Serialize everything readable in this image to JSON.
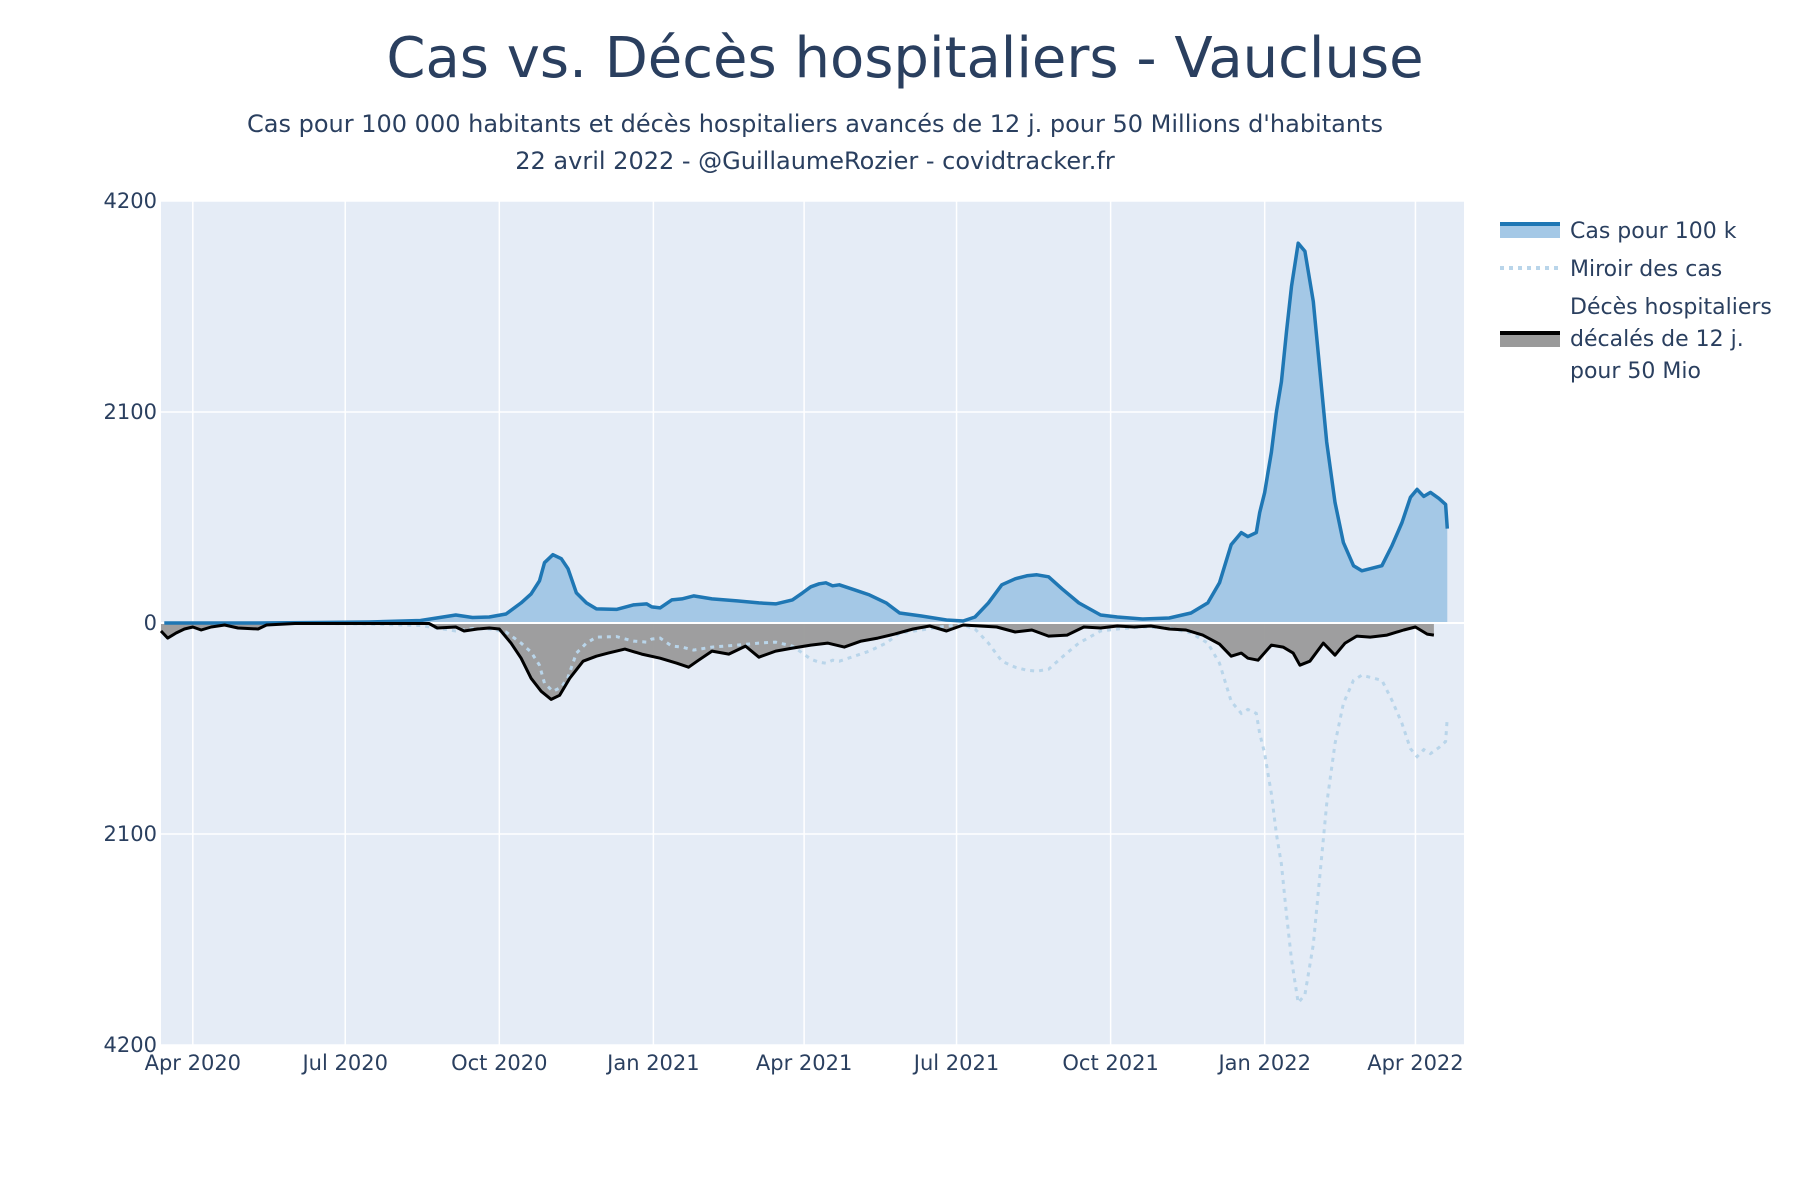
{
  "chart_data": {
    "type": "area",
    "title": "Cas vs. Décès hospitaliers - Vaucluse",
    "subtitle_line1": "Cas pour 100 000 habitants et décès hospitaliers avancés de 12 j. pour 50 Millions d'habitants",
    "subtitle_line2": "22 avril 2022 - @GuillaumeRozier - covidtracker.fr",
    "xlim": [
      "2020-03-13",
      "2022-04-30"
    ],
    "ylim": [
      -4200,
      4200
    ],
    "y_ticks": [
      {
        "value": 4200,
        "label": "4200"
      },
      {
        "value": 2100,
        "label": "2100"
      },
      {
        "value": 0,
        "label": "0"
      },
      {
        "value": -2100,
        "label": "2100"
      },
      {
        "value": -4200,
        "label": "4200"
      }
    ],
    "x_ticks": [
      {
        "value": "2020-04-01",
        "label": "Apr 2020"
      },
      {
        "value": "2020-07-01",
        "label": "Jul 2020"
      },
      {
        "value": "2020-10-01",
        "label": "Oct 2020"
      },
      {
        "value": "2021-01-01",
        "label": "Jan 2021"
      },
      {
        "value": "2021-04-01",
        "label": "Apr 2021"
      },
      {
        "value": "2021-07-01",
        "label": "Jul 2021"
      },
      {
        "value": "2021-10-01",
        "label": "Oct 2021"
      },
      {
        "value": "2022-01-01",
        "label": "Jan 2022"
      },
      {
        "value": "2022-04-01",
        "label": "Apr 2022"
      }
    ],
    "grid": true,
    "legend_position": "right",
    "series": [
      {
        "name": "Cas pour 100 k",
        "style": "filled-area-above-zero",
        "line_color": "#1f77b4",
        "fill_color": "#a4c8e6",
        "points": [
          [
            "2020-03-15",
            0
          ],
          [
            "2020-05-10",
            0
          ],
          [
            "2020-06-15",
            5
          ],
          [
            "2020-07-15",
            10
          ],
          [
            "2020-08-15",
            25
          ],
          [
            "2020-09-05",
            80
          ],
          [
            "2020-09-15",
            55
          ],
          [
            "2020-09-25",
            60
          ],
          [
            "2020-10-05",
            90
          ],
          [
            "2020-10-14",
            200
          ],
          [
            "2020-10-20",
            290
          ],
          [
            "2020-10-25",
            420
          ],
          [
            "2020-10-28",
            600
          ],
          [
            "2020-11-02",
            680
          ],
          [
            "2020-11-07",
            640
          ],
          [
            "2020-11-11",
            540
          ],
          [
            "2020-11-16",
            300
          ],
          [
            "2020-11-22",
            200
          ],
          [
            "2020-11-28",
            140
          ],
          [
            "2020-12-10",
            135
          ],
          [
            "2020-12-20",
            180
          ],
          [
            "2020-12-28",
            190
          ],
          [
            "2020-12-31",
            160
          ],
          [
            "2021-01-05",
            150
          ],
          [
            "2021-01-12",
            230
          ],
          [
            "2021-01-18",
            240
          ],
          [
            "2021-01-25",
            270
          ],
          [
            "2021-02-05",
            240
          ],
          [
            "2021-02-20",
            220
          ],
          [
            "2021-03-05",
            200
          ],
          [
            "2021-03-15",
            190
          ],
          [
            "2021-03-25",
            230
          ],
          [
            "2021-03-31",
            300
          ],
          [
            "2021-04-05",
            360
          ],
          [
            "2021-04-10",
            390
          ],
          [
            "2021-04-14",
            400
          ],
          [
            "2021-04-18",
            370
          ],
          [
            "2021-04-22",
            380
          ],
          [
            "2021-05-01",
            330
          ],
          [
            "2021-05-10",
            280
          ],
          [
            "2021-05-20",
            200
          ],
          [
            "2021-05-28",
            100
          ],
          [
            "2021-06-10",
            70
          ],
          [
            "2021-06-25",
            30
          ],
          [
            "2021-07-05",
            20
          ],
          [
            "2021-07-12",
            60
          ],
          [
            "2021-07-20",
            200
          ],
          [
            "2021-07-28",
            380
          ],
          [
            "2021-08-05",
            440
          ],
          [
            "2021-08-12",
            470
          ],
          [
            "2021-08-18",
            480
          ],
          [
            "2021-08-25",
            460
          ],
          [
            "2021-09-02",
            340
          ],
          [
            "2021-09-12",
            200
          ],
          [
            "2021-09-25",
            80
          ],
          [
            "2021-10-05",
            60
          ],
          [
            "2021-10-20",
            40
          ],
          [
            "2021-11-05",
            50
          ],
          [
            "2021-11-18",
            100
          ],
          [
            "2021-11-28",
            200
          ],
          [
            "2021-12-05",
            400
          ],
          [
            "2021-12-12",
            780
          ],
          [
            "2021-12-18",
            900
          ],
          [
            "2021-12-22",
            860
          ],
          [
            "2021-12-27",
            900
          ],
          [
            "2021-12-29",
            1100
          ],
          [
            "2022-01-01",
            1300
          ],
          [
            "2022-01-03",
            1500
          ],
          [
            "2022-01-05",
            1700
          ],
          [
            "2022-01-08",
            2100
          ],
          [
            "2022-01-11",
            2400
          ],
          [
            "2022-01-14",
            2900
          ],
          [
            "2022-01-17",
            3350
          ],
          [
            "2022-01-21",
            3780
          ],
          [
            "2022-01-25",
            3700
          ],
          [
            "2022-01-30",
            3200
          ],
          [
            "2022-02-03",
            2500
          ],
          [
            "2022-02-07",
            1800
          ],
          [
            "2022-02-12",
            1200
          ],
          [
            "2022-02-17",
            800
          ],
          [
            "2022-02-23",
            570
          ],
          [
            "2022-02-28",
            520
          ],
          [
            "2022-03-05",
            540
          ],
          [
            "2022-03-12",
            570
          ],
          [
            "2022-03-18",
            770
          ],
          [
            "2022-03-24",
            1000
          ],
          [
            "2022-03-29",
            1250
          ],
          [
            "2022-04-02",
            1330
          ],
          [
            "2022-04-06",
            1260
          ],
          [
            "2022-04-10",
            1300
          ],
          [
            "2022-04-15",
            1240
          ],
          [
            "2022-04-19",
            1180
          ],
          [
            "2022-04-20",
            940
          ]
        ]
      },
      {
        "name": "Miroir des cas",
        "style": "dotted-mirror",
        "line_color": "#b9d5ea",
        "mirror_of": "Cas pour 100 k"
      },
      {
        "name": "Décès hospitaliers décalés de 12 j. pour 50 Mio",
        "legend_lines": [
          "Décès hospitaliers",
          "décalés de 12 j.",
          "pour 50 Mio"
        ],
        "style": "filled-area-below-zero",
        "line_color": "#000000",
        "fill_color": "#9a9a9a",
        "points": [
          [
            "2020-03-13",
            -80
          ],
          [
            "2020-03-17",
            -150
          ],
          [
            "2020-03-22",
            -100
          ],
          [
            "2020-03-27",
            -60
          ],
          [
            "2020-04-01",
            -40
          ],
          [
            "2020-04-06",
            -70
          ],
          [
            "2020-04-12",
            -40
          ],
          [
            "2020-04-20",
            -20
          ],
          [
            "2020-04-28",
            -50
          ],
          [
            "2020-05-10",
            -60
          ],
          [
            "2020-05-15",
            -20
          ],
          [
            "2020-06-01",
            -5
          ],
          [
            "2020-08-20",
            -5
          ],
          [
            "2020-08-25",
            -50
          ],
          [
            "2020-09-05",
            -40
          ],
          [
            "2020-09-10",
            -80
          ],
          [
            "2020-09-18",
            -60
          ],
          [
            "2020-09-25",
            -50
          ],
          [
            "2020-10-01",
            -60
          ],
          [
            "2020-10-08",
            -200
          ],
          [
            "2020-10-14",
            -350
          ],
          [
            "2020-10-20",
            -550
          ],
          [
            "2020-10-26",
            -680
          ],
          [
            "2020-11-01",
            -760
          ],
          [
            "2020-11-06",
            -720
          ],
          [
            "2020-11-12",
            -550
          ],
          [
            "2020-11-20",
            -380
          ],
          [
            "2020-11-28",
            -330
          ],
          [
            "2020-12-05",
            -300
          ],
          [
            "2020-12-15",
            -260
          ],
          [
            "2020-12-25",
            -310
          ],
          [
            "2021-01-05",
            -350
          ],
          [
            "2021-01-15",
            -400
          ],
          [
            "2021-01-22",
            -440
          ],
          [
            "2021-01-28",
            -370
          ],
          [
            "2021-02-05",
            -280
          ],
          [
            "2021-02-15",
            -310
          ],
          [
            "2021-02-25",
            -230
          ],
          [
            "2021-03-05",
            -340
          ],
          [
            "2021-03-15",
            -280
          ],
          [
            "2021-03-25",
            -250
          ],
          [
            "2021-04-05",
            -220
          ],
          [
            "2021-04-15",
            -200
          ],
          [
            "2021-04-25",
            -240
          ],
          [
            "2021-05-05",
            -180
          ],
          [
            "2021-05-15",
            -150
          ],
          [
            "2021-05-25",
            -110
          ],
          [
            "2021-06-05",
            -60
          ],
          [
            "2021-06-15",
            -30
          ],
          [
            "2021-06-25",
            -80
          ],
          [
            "2021-07-05",
            -20
          ],
          [
            "2021-07-15",
            -30
          ],
          [
            "2021-07-25",
            -40
          ],
          [
            "2021-08-05",
            -90
          ],
          [
            "2021-08-15",
            -70
          ],
          [
            "2021-08-25",
            -130
          ],
          [
            "2021-09-05",
            -120
          ],
          [
            "2021-09-15",
            -40
          ],
          [
            "2021-09-25",
            -50
          ],
          [
            "2021-10-05",
            -30
          ],
          [
            "2021-10-15",
            -40
          ],
          [
            "2021-10-25",
            -30
          ],
          [
            "2021-11-05",
            -60
          ],
          [
            "2021-11-15",
            -70
          ],
          [
            "2021-11-25",
            -120
          ],
          [
            "2021-12-05",
            -210
          ],
          [
            "2021-12-12",
            -330
          ],
          [
            "2021-12-18",
            -300
          ],
          [
            "2021-12-22",
            -350
          ],
          [
            "2021-12-28",
            -370
          ],
          [
            "2022-01-05",
            -220
          ],
          [
            "2022-01-12",
            -240
          ],
          [
            "2022-01-18",
            -300
          ],
          [
            "2022-01-22",
            -420
          ],
          [
            "2022-01-28",
            -380
          ],
          [
            "2022-02-05",
            -200
          ],
          [
            "2022-02-12",
            -320
          ],
          [
            "2022-02-18",
            -200
          ],
          [
            "2022-02-25",
            -130
          ],
          [
            "2022-03-05",
            -140
          ],
          [
            "2022-03-15",
            -120
          ],
          [
            "2022-03-25",
            -70
          ],
          [
            "2022-04-01",
            -40
          ],
          [
            "2022-04-08",
            -110
          ],
          [
            "2022-04-12",
            -120
          ]
        ]
      }
    ]
  }
}
